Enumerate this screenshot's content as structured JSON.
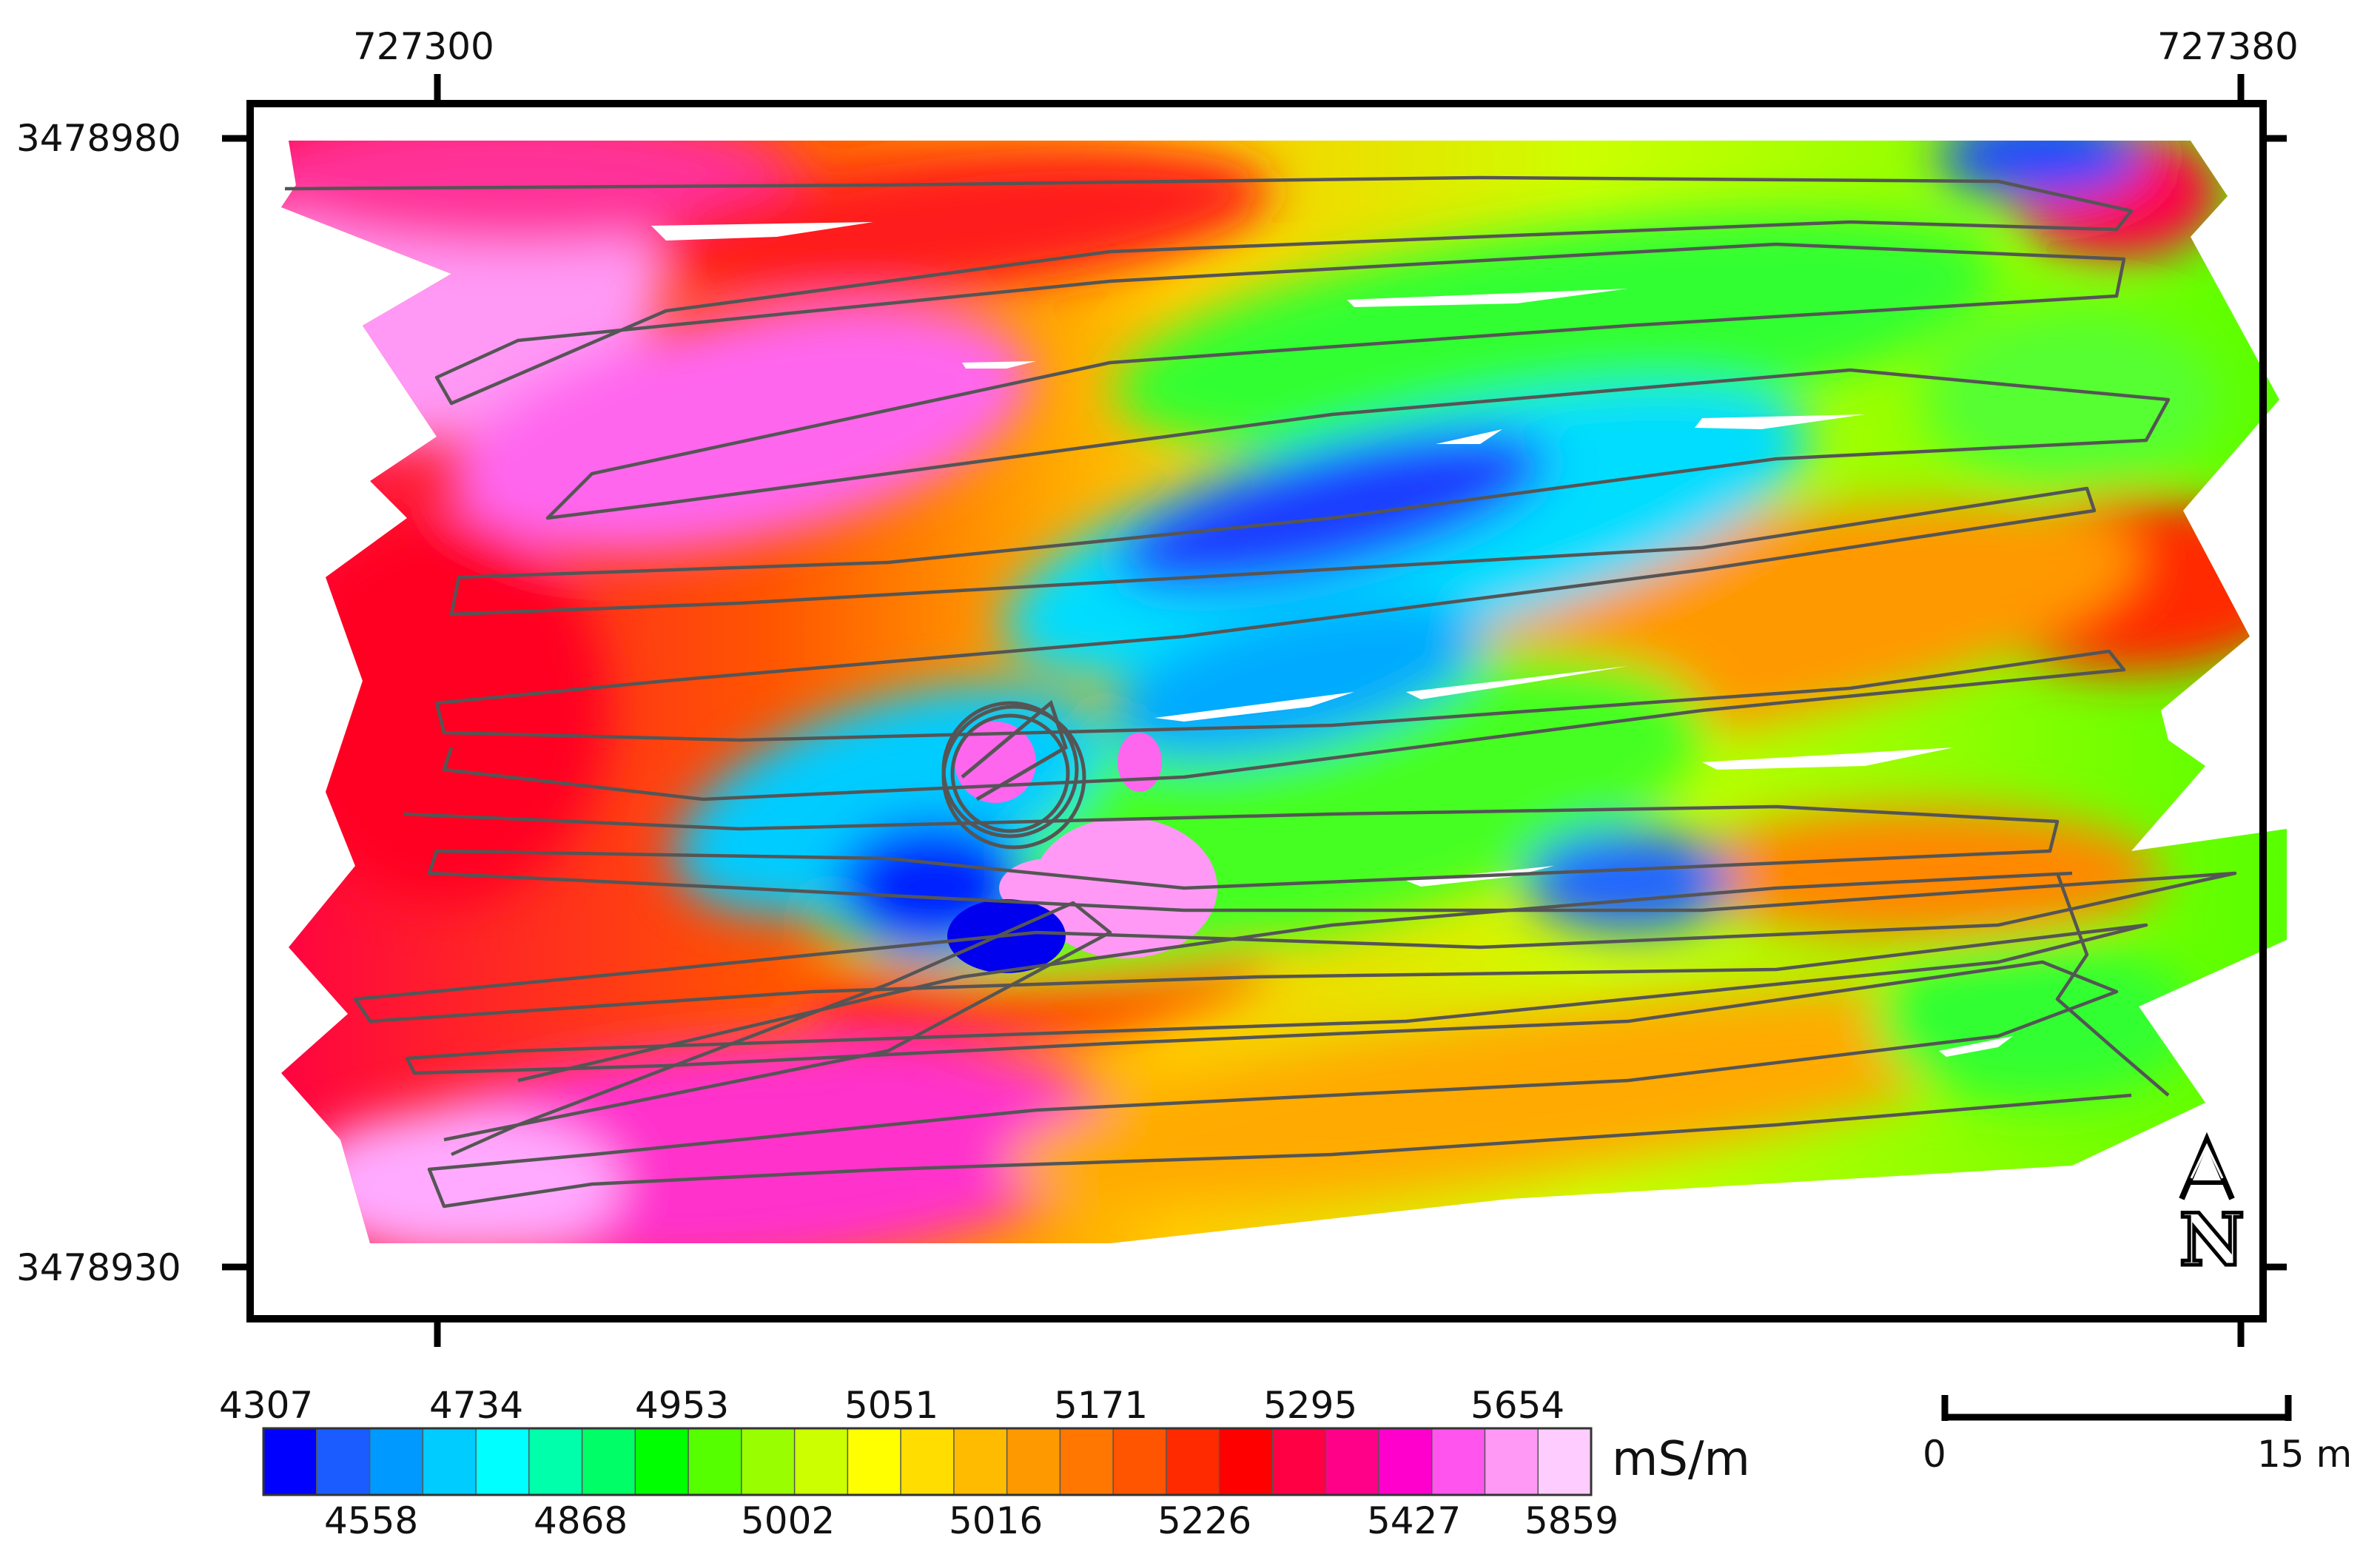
{
  "map": {
    "top_axis_labels": [
      "727300",
      "727380"
    ],
    "left_axis_labels": [
      "3478980",
      "3478930"
    ],
    "north_arrow_letter": "N"
  },
  "legend": {
    "unit": "mS/m",
    "top_labels": [
      "4307",
      "4734",
      "4953",
      "5051",
      "5171",
      "5295",
      "5654"
    ],
    "bottom_labels": [
      "4558",
      "4868",
      "5002",
      "5016",
      "5226",
      "5427",
      "5859"
    ],
    "bin_colors": [
      "#0000ff",
      "#1a5cff",
      "#0099ff",
      "#00ccff",
      "#00ffff",
      "#00ffaa",
      "#00ff66",
      "#00ff00",
      "#55ff00",
      "#99ff00",
      "#ccff00",
      "#ffff00",
      "#ffdd00",
      "#ffbb00",
      "#ff9900",
      "#ff7700",
      "#ff5500",
      "#ff2a00",
      "#ff0000",
      "#ff0044",
      "#ff0088",
      "#ff00cc",
      "#ff55ee",
      "#ff99f5",
      "#ffccff"
    ]
  },
  "scale_bar": {
    "start_label": "0",
    "end_label": "15 m"
  }
}
